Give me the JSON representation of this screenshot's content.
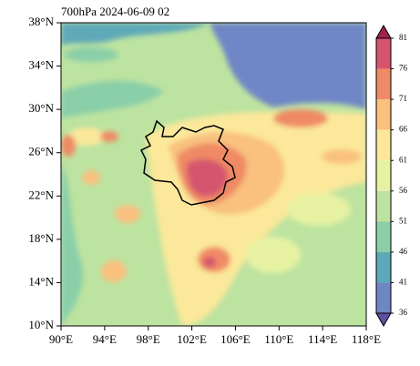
{
  "title": "700hPa 2024-06-09 02",
  "lat_labels": [
    "38°N",
    "34°N",
    "30°N",
    "26°N",
    "22°N",
    "18°N",
    "14°N",
    "10°N"
  ],
  "lon_labels": [
    "90°E",
    "94°E",
    "98°E",
    "102°E",
    "106°E",
    "110°E",
    "114°E",
    "118°E"
  ],
  "colorbar": {
    "labels": [
      "81",
      "76",
      "71",
      "66",
      "61",
      "56",
      "51",
      "46",
      "41",
      "36"
    ]
  }
}
